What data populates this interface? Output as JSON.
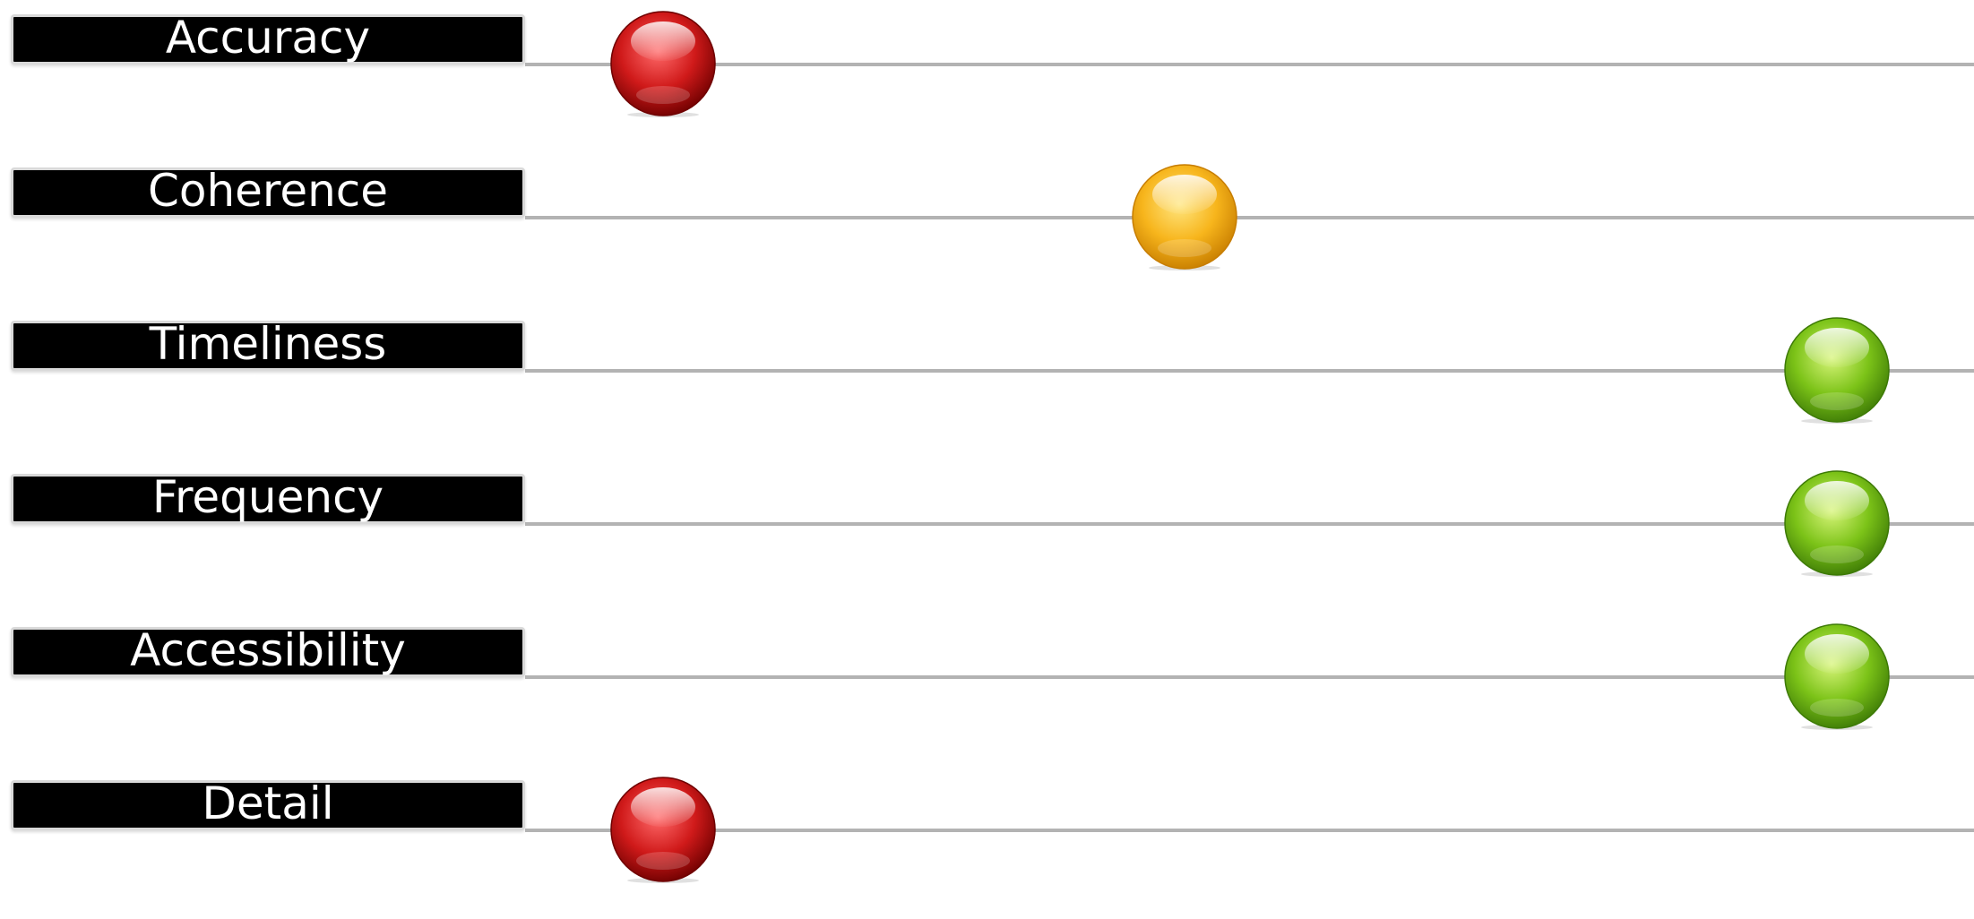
{
  "rows": [
    {
      "label": "Accuracy",
      "status": "red",
      "level": 0.1
    },
    {
      "label": "Coherence",
      "status": "amber",
      "level": 0.5
    },
    {
      "label": "Timeliness",
      "status": "green",
      "level": 1.0
    },
    {
      "label": "Frequency",
      "status": "green",
      "level": 1.0
    },
    {
      "label": "Accessibility",
      "status": "green",
      "level": 1.0
    },
    {
      "label": "Detail",
      "status": "red",
      "level": 0.1
    }
  ],
  "colors": {
    "red": {
      "light": "#ff6a6a",
      "mid": "#d01a1a",
      "dark": "#6e0000"
    },
    "amber": {
      "light": "#ffe680",
      "mid": "#f7b51c",
      "dark": "#c77d00"
    },
    "green": {
      "light": "#d8f57a",
      "mid": "#7cc318",
      "dark": "#3d7a06"
    }
  }
}
